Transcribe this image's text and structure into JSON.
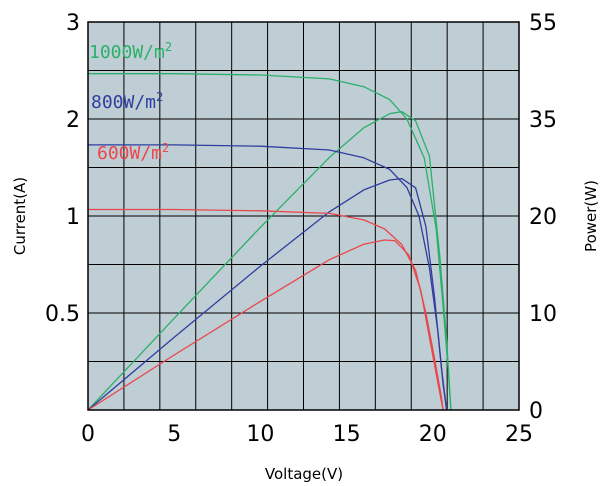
{
  "chart_data": {
    "type": "line",
    "xlabel": "Voltage(V)",
    "ylabel_left": "Current(A)",
    "ylabel_right": "Power(W)",
    "x_ticks": [
      "0",
      "5",
      "10",
      "15",
      "20",
      "25"
    ],
    "y_left_ticks": [
      "0.5",
      "1",
      "2",
      "3"
    ],
    "y_right_ticks": [
      "0",
      "10",
      "20",
      "35",
      "55"
    ],
    "xlim": [
      0,
      25
    ],
    "ylim_left_label_range": [
      0,
      3
    ],
    "ylim_right": [
      0,
      55
    ],
    "grid": true,
    "background": "#bfcdd4",
    "series": [
      {
        "name": "1000W/m",
        "name_sup": "2",
        "color": "#2bb06a",
        "current_points": [
          [
            0,
            2.6
          ],
          [
            5,
            2.6
          ],
          [
            10,
            2.59
          ],
          [
            14,
            2.56
          ],
          [
            16,
            2.5
          ],
          [
            17.5,
            2.4
          ],
          [
            18.5,
            2.25
          ],
          [
            19.5,
            1.95
          ],
          [
            20.2,
            1.4
          ],
          [
            20.6,
            0.8
          ],
          [
            20.9,
            0.3
          ],
          [
            21.05,
            0
          ]
        ],
        "power_points": [
          [
            0,
            0
          ],
          [
            5,
            13.0
          ],
          [
            10,
            25.9
          ],
          [
            14,
            35.8
          ],
          [
            16,
            40.0
          ],
          [
            17.5,
            42.0
          ],
          [
            18.2,
            42.3
          ],
          [
            19.0,
            41.0
          ],
          [
            19.8,
            36.0
          ],
          [
            20.4,
            22.0
          ],
          [
            20.8,
            10.0
          ],
          [
            21.05,
            0
          ]
        ]
      },
      {
        "name": "800W/m",
        "name_sup": "2",
        "color": "#2f3ea0",
        "current_points": [
          [
            0,
            2.05
          ],
          [
            5,
            2.05
          ],
          [
            10,
            2.04
          ],
          [
            14,
            2.01
          ],
          [
            16,
            1.95
          ],
          [
            17.5,
            1.86
          ],
          [
            18.5,
            1.72
          ],
          [
            19.2,
            1.5
          ],
          [
            19.8,
            1.1
          ],
          [
            20.3,
            0.6
          ],
          [
            20.6,
            0.2
          ],
          [
            20.8,
            0
          ]
        ],
        "power_points": [
          [
            0,
            0
          ],
          [
            5,
            10.3
          ],
          [
            10,
            20.4
          ],
          [
            14,
            28.1
          ],
          [
            16,
            31.2
          ],
          [
            17.5,
            32.6
          ],
          [
            18.2,
            32.8
          ],
          [
            19.0,
            31.5
          ],
          [
            19.6,
            26.0
          ],
          [
            20.1,
            16.0
          ],
          [
            20.5,
            6.0
          ],
          [
            20.8,
            0
          ]
        ]
      },
      {
        "name": "600W/m",
        "name_sup": "2",
        "color": "#e8474b",
        "current_points": [
          [
            0,
            1.55
          ],
          [
            5,
            1.55
          ],
          [
            10,
            1.54
          ],
          [
            14,
            1.52
          ],
          [
            16,
            1.47
          ],
          [
            17.2,
            1.4
          ],
          [
            18.2,
            1.28
          ],
          [
            19.0,
            1.08
          ],
          [
            19.6,
            0.75
          ],
          [
            20.1,
            0.4
          ],
          [
            20.5,
            0.1
          ],
          [
            20.6,
            0
          ]
        ],
        "power_points": [
          [
            0,
            0
          ],
          [
            5,
            7.8
          ],
          [
            10,
            15.4
          ],
          [
            14,
            21.3
          ],
          [
            16,
            23.5
          ],
          [
            17.2,
            24.1
          ],
          [
            17.8,
            24.0
          ],
          [
            18.6,
            22.0
          ],
          [
            19.3,
            17.0
          ],
          [
            19.9,
            9.0
          ],
          [
            20.4,
            2.5
          ],
          [
            20.6,
            0
          ]
        ]
      }
    ]
  }
}
